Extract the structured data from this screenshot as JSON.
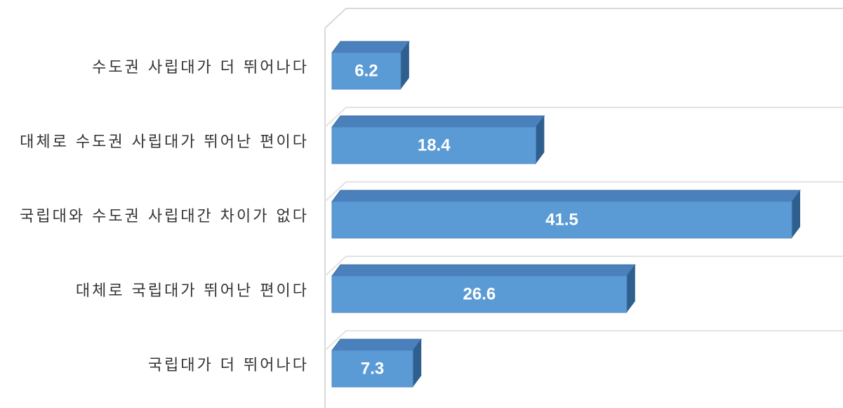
{
  "chart_data": {
    "type": "bar",
    "orientation": "horizontal",
    "three_d": true,
    "categories": [
      "수도권 사립대가 더 뛰어나다",
      "대체로 수도권 사립대가 뛰어난 편이다",
      "국립대와 수도권 사립대간 차이가 없다",
      "대체로 국립대가 뛰어난 편이다",
      "국립대가 더 뛰어나다"
    ],
    "values": [
      6.2,
      18.4,
      41.5,
      26.6,
      7.3
    ],
    "color": "#5b9bd5"
  }
}
